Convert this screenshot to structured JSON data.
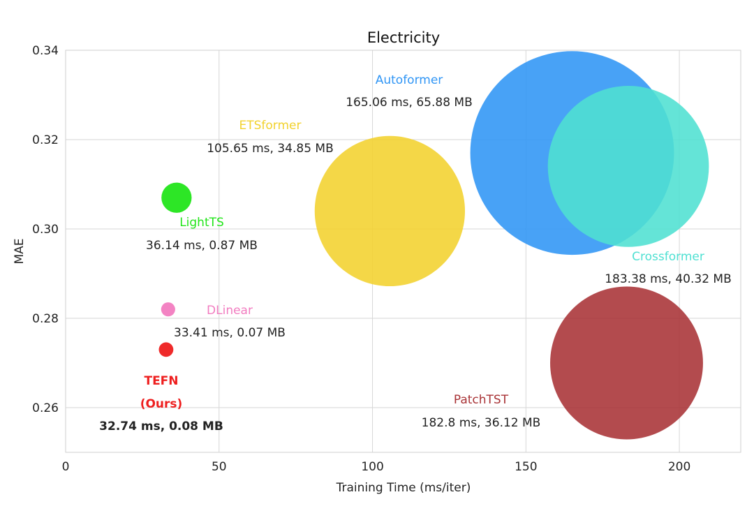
{
  "chart_data": {
    "type": "scatter",
    "title": "Electricity",
    "xlabel": "Training Time (ms/iter)",
    "ylabel": "MAE",
    "xlim": [
      0,
      220
    ],
    "ylim": [
      0.25,
      0.34
    ],
    "xticks": [
      0,
      50,
      100,
      150,
      200
    ],
    "xtick_labels": [
      "0",
      "50",
      "100",
      "150",
      "200"
    ],
    "yticks": [
      0.26,
      0.28,
      0.3,
      0.32,
      0.34
    ],
    "ytick_labels": [
      "0.26",
      "0.28",
      "0.30",
      "0.32",
      "0.34"
    ],
    "grid": true,
    "legend": "none",
    "points": [
      {
        "name": "Autoformer",
        "x": 165.06,
        "y": 0.317,
        "memory_mb": 65.88,
        "label": "165.06 ms, 65.88 MB",
        "color": "#2f95f5"
      },
      {
        "name": "Crossformer",
        "x": 183.38,
        "y": 0.314,
        "memory_mb": 40.32,
        "label": "183.38 ms, 40.32 MB",
        "color": "#4fe0d2"
      },
      {
        "name": "ETSformer",
        "x": 105.65,
        "y": 0.304,
        "memory_mb": 34.85,
        "label": "105.65 ms, 34.85 MB",
        "color": "#f2d22e"
      },
      {
        "name": "PatchTST",
        "x": 182.8,
        "y": 0.27,
        "memory_mb": 36.12,
        "label": "182.8 ms, 36.12 MB",
        "color": "#a83235"
      },
      {
        "name": "LightTS",
        "x": 36.14,
        "y": 0.307,
        "memory_mb": 0.87,
        "label": "36.14 ms, 0.87 MB",
        "color": "#22e51a"
      },
      {
        "name": "DLinear",
        "x": 33.41,
        "y": 0.282,
        "memory_mb": 0.07,
        "label": "33.41 ms, 0.07 MB",
        "color": "#f27cc0"
      },
      {
        "name": "TEFN",
        "name2": "(Ours)",
        "x": 32.74,
        "y": 0.273,
        "memory_mb": 0.08,
        "label": "32.74 ms, 0.08 MB",
        "color": "#ee1f1f"
      }
    ]
  }
}
